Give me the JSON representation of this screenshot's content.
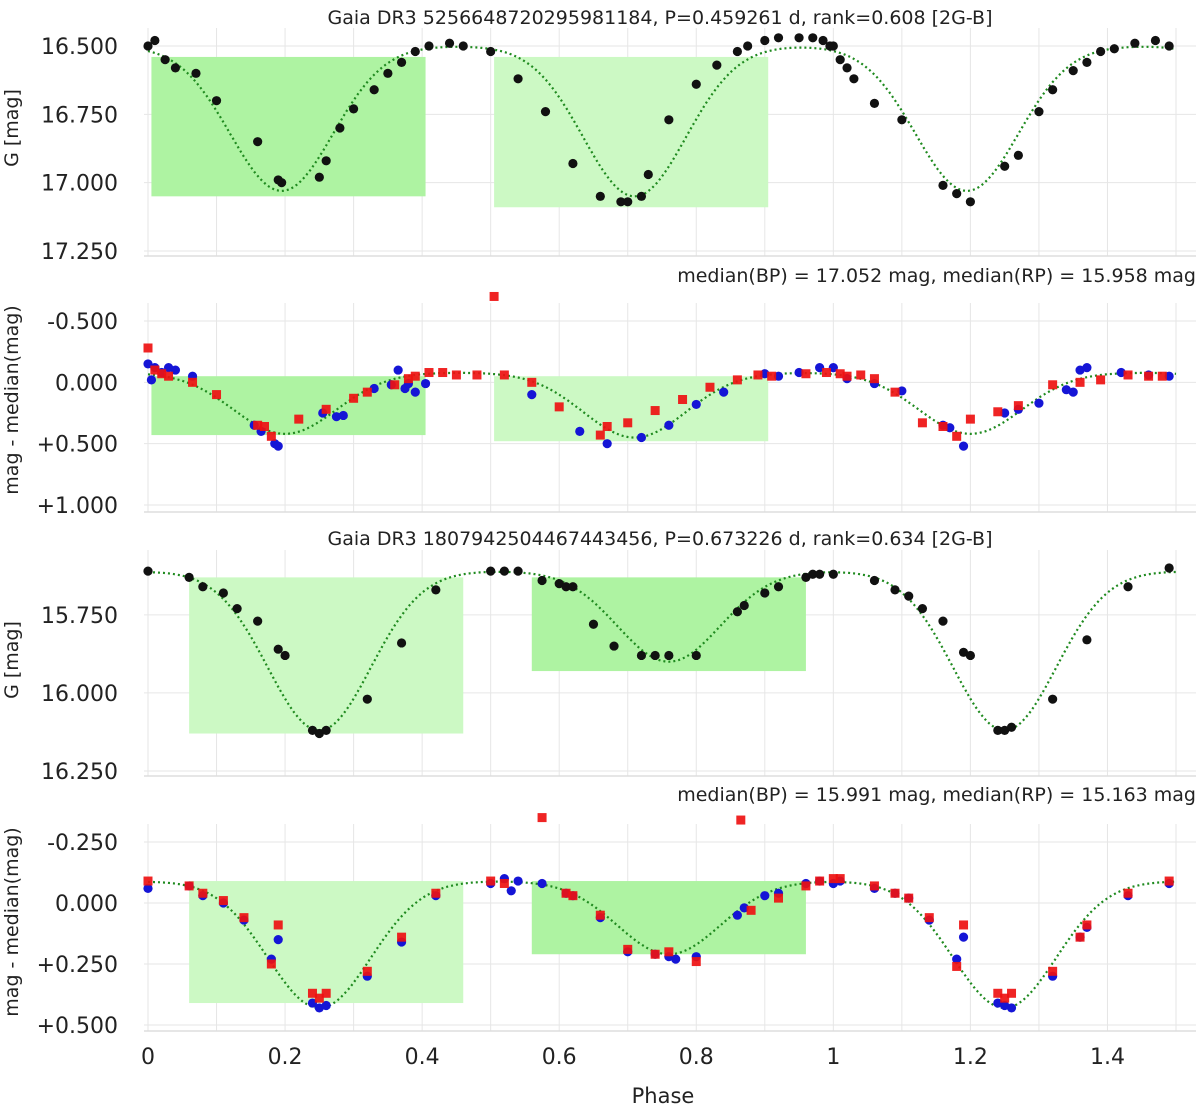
{
  "chart_data": [
    {
      "type": "scatter",
      "panel": "G light curve",
      "title": "Gaia DR3 5256648720295981184, P=0.459261 d, rank=0.608 [2G-B]",
      "ylabel": "G [mag]",
      "xlim": [
        0,
        1.5
      ],
      "ylim": [
        16.5,
        17.25
      ],
      "y_inverted": true,
      "yticks": [
        "16.500",
        "16.750",
        "17.000",
        "17.250"
      ],
      "grid": true,
      "model": {
        "type": "two-eclipse",
        "base": 16.5,
        "depth1": 0.53,
        "depth2": 0.55,
        "center1": 0.195,
        "center2": 0.71,
        "width": 0.075
      },
      "highlight_boxes": [
        {
          "x": [
            0.005,
            0.405
          ],
          "y": [
            16.54,
            17.05
          ],
          "color": "#aef3a2"
        },
        {
          "x": [
            0.505,
            0.905
          ],
          "y": [
            16.54,
            17.09
          ],
          "color": "#ccf9c4"
        }
      ],
      "series": [
        {
          "name": "G",
          "color": "#111111",
          "marker": "circle",
          "x": [
            0,
            0.01,
            0.025,
            0.04,
            0.07,
            0.1,
            0.16,
            0.19,
            0.195,
            0.25,
            0.26,
            0.28,
            0.3,
            0.33,
            0.35,
            0.37,
            0.39,
            0.41,
            0.44,
            0.46,
            0.5,
            0.54,
            0.58,
            0.62,
            0.66,
            0.69,
            0.7,
            0.72,
            0.73,
            0.76,
            0.8,
            0.83,
            0.86,
            0.875,
            0.9,
            0.92,
            0.95,
            0.97,
            0.985,
            0.995,
            1.0,
            1.01,
            1.02,
            1.03,
            1.06,
            1.1,
            1.16,
            1.18,
            1.2,
            1.25,
            1.27,
            1.3,
            1.32,
            1.35,
            1.37,
            1.39,
            1.41,
            1.44,
            1.47,
            1.49
          ],
          "y": [
            16.5,
            16.48,
            16.55,
            16.58,
            16.6,
            16.7,
            16.85,
            16.99,
            17.0,
            16.98,
            16.92,
            16.8,
            16.73,
            16.66,
            16.6,
            16.56,
            16.52,
            16.5,
            16.49,
            16.5,
            16.52,
            16.62,
            16.74,
            16.93,
            17.05,
            17.07,
            17.07,
            17.05,
            16.97,
            16.77,
            16.64,
            16.57,
            16.52,
            16.5,
            16.48,
            16.47,
            16.47,
            16.47,
            16.48,
            16.5,
            16.5,
            16.55,
            16.58,
            16.62,
            16.71,
            16.77,
            17.01,
            17.04,
            17.07,
            16.94,
            16.9,
            16.74,
            16.66,
            16.59,
            16.56,
            16.52,
            16.51,
            16.49,
            16.48,
            16.5
          ]
        }
      ]
    },
    {
      "type": "scatter",
      "panel": "BP/RP residuals",
      "subtitle": "median(BP) = 17.052 mag, median(RP) = 15.958 mag",
      "ylabel": "mag - median(mag)",
      "xlim": [
        0,
        1.5
      ],
      "ylim": [
        -0.5,
        1.0
      ],
      "y_inverted": true,
      "yticks": [
        "-0.500",
        "0.000",
        "+0.500",
        "+1.000"
      ],
      "grid": true,
      "model": {
        "type": "two-eclipse",
        "base": -0.08,
        "depth1": 0.5,
        "depth2": 0.53,
        "center1": 0.2,
        "center2": 0.71,
        "width": 0.075
      },
      "highlight_boxes": [
        {
          "x": [
            0.005,
            0.405
          ],
          "y": [
            -0.05,
            0.43
          ],
          "color": "#aef3a2"
        },
        {
          "x": [
            0.505,
            0.905
          ],
          "y": [
            -0.05,
            0.48
          ],
          "color": "#ccf9c4"
        }
      ],
      "series": [
        {
          "name": "BP",
          "color": "#1515d6",
          "marker": "circle",
          "x": [
            0,
            0.005,
            0.01,
            0.02,
            0.03,
            0.04,
            0.065,
            0.155,
            0.165,
            0.185,
            0.19,
            0.255,
            0.275,
            0.285,
            0.33,
            0.355,
            0.365,
            0.375,
            0.38,
            0.39,
            0.405,
            0.56,
            0.63,
            0.67,
            0.72,
            0.76,
            0.8,
            0.84,
            0.9,
            0.92,
            0.95,
            0.98,
            1.0,
            1.02,
            1.06,
            1.1,
            1.16,
            1.17,
            1.19,
            1.25,
            1.27,
            1.3,
            1.34,
            1.35,
            1.36,
            1.37,
            1.42,
            1.46,
            1.49
          ],
          "y": [
            -0.15,
            -0.02,
            -0.12,
            -0.08,
            -0.12,
            -0.1,
            -0.05,
            0.35,
            0.4,
            0.5,
            0.52,
            0.25,
            0.28,
            0.27,
            0.05,
            0.02,
            -0.1,
            0.05,
            0.01,
            0.08,
            0.01,
            0.1,
            0.4,
            0.5,
            0.45,
            0.35,
            0.18,
            0.08,
            -0.07,
            -0.05,
            -0.08,
            -0.12,
            -0.12,
            -0.03,
            0.01,
            0.07,
            0.35,
            0.37,
            0.52,
            0.25,
            0.22,
            0.17,
            0.06,
            0.08,
            -0.1,
            -0.12,
            -0.08,
            -0.06,
            -0.05
          ]
        },
        {
          "name": "RP",
          "color": "#ee1111",
          "marker": "square",
          "x": [
            0,
            0.01,
            0.02,
            0.03,
            0.065,
            0.1,
            0.16,
            0.17,
            0.18,
            0.22,
            0.26,
            0.3,
            0.32,
            0.36,
            0.38,
            0.39,
            0.41,
            0.43,
            0.45,
            0.48,
            0.505,
            0.52,
            0.56,
            0.6,
            0.66,
            0.67,
            0.7,
            0.74,
            0.78,
            0.82,
            0.86,
            0.89,
            0.91,
            0.96,
            0.99,
            1.01,
            1.02,
            1.04,
            1.06,
            1.09,
            1.13,
            1.16,
            1.18,
            1.2,
            1.24,
            1.27,
            1.32,
            1.36,
            1.39,
            1.43,
            1.46,
            1.48
          ],
          "y": [
            -0.28,
            -0.1,
            -0.07,
            -0.05,
            0.0,
            0.1,
            0.35,
            0.36,
            0.44,
            0.3,
            0.22,
            0.13,
            0.08,
            0.02,
            -0.03,
            -0.05,
            -0.08,
            -0.08,
            -0.06,
            -0.06,
            -0.7,
            -0.06,
            0.0,
            0.2,
            0.43,
            0.36,
            0.33,
            0.23,
            0.14,
            0.04,
            -0.02,
            -0.06,
            -0.05,
            -0.07,
            -0.08,
            -0.07,
            -0.05,
            -0.06,
            -0.03,
            0.08,
            0.33,
            0.36,
            0.44,
            0.3,
            0.24,
            0.19,
            0.02,
            0.0,
            -0.02,
            -0.06,
            -0.05,
            -0.05
          ]
        }
      ]
    },
    {
      "type": "scatter",
      "panel": "G light curve",
      "title": "Gaia DR3 1807942504467443456, P=0.673226 d, rank=0.634 [2G-B]",
      "ylabel": "G [mag]",
      "xlim": [
        0,
        1.5
      ],
      "ylim": [
        15.6,
        16.25
      ],
      "y_inverted": true,
      "yticks": [
        "15.750",
        "16.000",
        "16.250"
      ],
      "grid": true,
      "model": {
        "type": "two-eclipse",
        "base": 15.61,
        "depth1": 0.51,
        "depth2": 0.29,
        "center1": 0.25,
        "center2": 0.76,
        "width": 0.075
      },
      "highlight_boxes": [
        {
          "x": [
            0.06,
            0.46
          ],
          "y": [
            15.63,
            16.13
          ],
          "color": "#ccf9c4"
        },
        {
          "x": [
            0.56,
            0.96
          ],
          "y": [
            15.63,
            15.93
          ],
          "color": "#aef3a2"
        }
      ],
      "series": [
        {
          "name": "G",
          "color": "#111111",
          "marker": "circle",
          "x": [
            0,
            0.06,
            0.08,
            0.11,
            0.13,
            0.16,
            0.19,
            0.2,
            0.24,
            0.25,
            0.26,
            0.32,
            0.37,
            0.42,
            0.5,
            0.52,
            0.54,
            0.575,
            0.6,
            0.61,
            0.62,
            0.65,
            0.68,
            0.72,
            0.74,
            0.76,
            0.8,
            0.86,
            0.87,
            0.9,
            0.92,
            0.96,
            0.97,
            0.98,
            1.0,
            1.06,
            1.09,
            1.11,
            1.13,
            1.16,
            1.19,
            1.2,
            1.24,
            1.25,
            1.26,
            1.32,
            1.37,
            1.43,
            1.49
          ],
          "y": [
            15.61,
            15.63,
            15.66,
            15.68,
            15.73,
            15.77,
            15.86,
            15.88,
            16.12,
            16.13,
            16.12,
            16.02,
            15.84,
            15.67,
            15.61,
            15.61,
            15.61,
            15.64,
            15.65,
            15.66,
            15.66,
            15.78,
            15.85,
            15.88,
            15.88,
            15.88,
            15.88,
            15.74,
            15.72,
            15.68,
            15.66,
            15.63,
            15.62,
            15.62,
            15.62,
            15.64,
            15.67,
            15.69,
            15.73,
            15.77,
            15.87,
            15.88,
            16.12,
            16.12,
            16.11,
            16.02,
            15.83,
            15.66,
            15.6
          ]
        }
      ]
    },
    {
      "type": "scatter",
      "panel": "BP/RP residuals",
      "subtitle": "median(BP) = 15.991 mag, median(RP) = 15.163 mag",
      "ylabel": "mag - median(mag)",
      "xlabel": "Phase",
      "xlim": [
        0,
        1.5
      ],
      "xticks": [
        "0",
        "0.2",
        "0.4",
        "0.6",
        "0.8",
        "1",
        "1.2",
        "1.4"
      ],
      "ylim": [
        -0.25,
        0.5
      ],
      "y_inverted": true,
      "yticks": [
        "-0.250",
        "0.000",
        "+0.250",
        "+0.500"
      ],
      "grid": true,
      "model": {
        "type": "two-eclipse",
        "base": -0.09,
        "depth1": 0.52,
        "depth2": 0.3,
        "center1": 0.25,
        "center2": 0.76,
        "width": 0.075
      },
      "highlight_boxes": [
        {
          "x": [
            0.06,
            0.46
          ],
          "y": [
            -0.09,
            0.41
          ],
          "color": "#ccf9c4"
        },
        {
          "x": [
            0.56,
            0.96
          ],
          "y": [
            -0.09,
            0.21
          ],
          "color": "#aef3a2"
        }
      ],
      "series": [
        {
          "name": "BP",
          "color": "#1515d6",
          "marker": "circle",
          "x": [
            0,
            0.06,
            0.08,
            0.11,
            0.14,
            0.18,
            0.19,
            0.24,
            0.25,
            0.26,
            0.32,
            0.37,
            0.42,
            0.5,
            0.52,
            0.53,
            0.54,
            0.575,
            0.61,
            0.62,
            0.66,
            0.7,
            0.74,
            0.76,
            0.77,
            0.8,
            0.86,
            0.87,
            0.9,
            0.92,
            0.96,
            0.98,
            1.0,
            1.01,
            1.06,
            1.09,
            1.11,
            1.14,
            1.18,
            1.19,
            1.24,
            1.25,
            1.26,
            1.32,
            1.36,
            1.37,
            1.43,
            1.49
          ],
          "y": [
            -0.06,
            -0.07,
            -0.03,
            0.0,
            0.07,
            0.23,
            0.15,
            0.41,
            0.43,
            0.42,
            0.3,
            0.16,
            -0.03,
            -0.08,
            -0.1,
            -0.05,
            -0.09,
            -0.08,
            -0.04,
            -0.03,
            0.06,
            0.2,
            0.21,
            0.22,
            0.23,
            0.22,
            0.05,
            0.02,
            -0.03,
            -0.04,
            -0.08,
            -0.09,
            -0.08,
            -0.09,
            -0.06,
            -0.04,
            -0.02,
            0.07,
            0.23,
            0.14,
            0.41,
            0.42,
            0.43,
            0.3,
            0.14,
            0.1,
            -0.03,
            -0.08
          ]
        },
        {
          "name": "RP",
          "color": "#ee1111",
          "marker": "square",
          "x": [
            0,
            0.06,
            0.08,
            0.11,
            0.14,
            0.18,
            0.19,
            0.24,
            0.25,
            0.26,
            0.32,
            0.37,
            0.42,
            0.5,
            0.52,
            0.575,
            0.61,
            0.62,
            0.66,
            0.7,
            0.74,
            0.76,
            0.8,
            0.865,
            0.88,
            0.92,
            0.96,
            0.98,
            1.0,
            1.01,
            1.06,
            1.09,
            1.11,
            1.14,
            1.18,
            1.19,
            1.24,
            1.25,
            1.26,
            1.32,
            1.36,
            1.37,
            1.43,
            1.49
          ],
          "y": [
            -0.09,
            -0.07,
            -0.04,
            -0.01,
            0.06,
            0.25,
            0.09,
            0.37,
            0.39,
            0.37,
            0.28,
            0.14,
            -0.04,
            -0.09,
            -0.08,
            -0.35,
            -0.04,
            -0.03,
            0.05,
            0.19,
            0.21,
            0.2,
            0.24,
            -0.34,
            0.03,
            -0.02,
            -0.07,
            -0.09,
            -0.1,
            -0.1,
            -0.07,
            -0.04,
            -0.02,
            0.06,
            0.26,
            0.09,
            0.37,
            0.39,
            0.37,
            0.28,
            0.14,
            0.09,
            -0.04,
            -0.09
          ]
        }
      ]
    }
  ]
}
